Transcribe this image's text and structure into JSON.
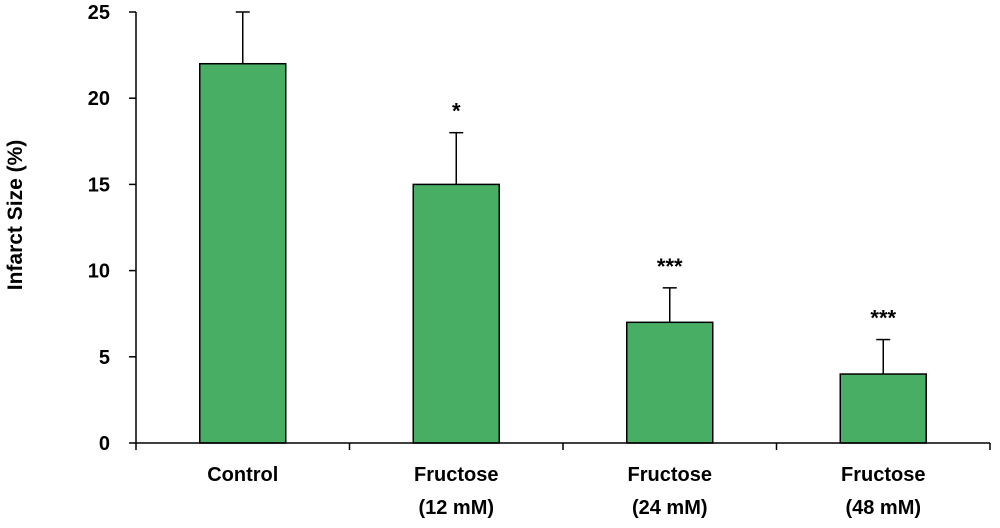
{
  "chart_data": {
    "type": "bar",
    "title": "",
    "xlabel": "",
    "ylabel": "Infarct Size (%)",
    "ylim": [
      0,
      25
    ],
    "yticks": [
      0,
      5,
      10,
      15,
      20,
      25
    ],
    "grid": false,
    "categories": [
      [
        "Control"
      ],
      [
        "Fructose",
        "(12 mM)"
      ],
      [
        "Fructose",
        "(24 mM)"
      ],
      [
        "Fructose",
        "(48 mM)"
      ]
    ],
    "series": [
      {
        "values": [
          22,
          15,
          7,
          4
        ],
        "errors": [
          3,
          3,
          2,
          2
        ],
        "color": "#48AE64"
      }
    ],
    "annotations": [
      "",
      "*",
      "***",
      "***"
    ]
  }
}
